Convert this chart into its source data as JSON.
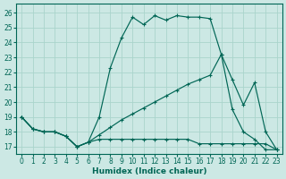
{
  "xlabel": "Humidex (Indice chaleur)",
  "bg_color": "#cce8e4",
  "grid_color": "#aad4cc",
  "line_color": "#006655",
  "xlim": [
    -0.5,
    23.5
  ],
  "ylim": [
    16.5,
    26.6
  ],
  "xticks": [
    0,
    1,
    2,
    3,
    4,
    5,
    6,
    7,
    8,
    9,
    10,
    11,
    12,
    13,
    14,
    15,
    16,
    17,
    18,
    19,
    20,
    21,
    22,
    23
  ],
  "yticks": [
    17,
    18,
    19,
    20,
    21,
    22,
    23,
    24,
    25,
    26
  ],
  "line1_x": [
    0,
    1,
    2,
    3,
    4,
    5,
    6,
    7,
    8,
    9,
    10,
    11,
    12,
    13,
    14,
    15,
    16,
    17,
    18,
    19,
    20,
    21,
    22,
    23
  ],
  "line1_y": [
    19,
    18.2,
    18,
    18,
    17.7,
    17.0,
    17.3,
    19.0,
    22.3,
    24.3,
    25.7,
    25.2,
    25.8,
    25.5,
    25.8,
    25.7,
    25.7,
    25.6,
    23.2,
    19.5,
    18.0,
    17.5,
    16.8,
    16.8
  ],
  "line2_x": [
    0,
    1,
    2,
    3,
    4,
    5,
    6,
    7,
    8,
    9,
    10,
    11,
    12,
    13,
    14,
    15,
    16,
    17,
    18,
    19,
    20,
    21,
    22,
    23
  ],
  "line2_y": [
    19,
    18.2,
    18,
    18,
    17.7,
    17.0,
    17.3,
    17.8,
    18.3,
    18.8,
    19.2,
    19.6,
    20.0,
    20.4,
    20.8,
    21.2,
    21.5,
    21.8,
    23.2,
    21.5,
    19.8,
    21.3,
    18.0,
    16.8
  ],
  "line3_x": [
    0,
    1,
    2,
    3,
    4,
    5,
    6,
    7,
    8,
    9,
    10,
    11,
    12,
    13,
    14,
    15,
    16,
    17,
    18,
    19,
    20,
    21,
    22,
    23
  ],
  "line3_y": [
    19,
    18.2,
    18,
    18,
    17.7,
    17.0,
    17.3,
    17.5,
    17.5,
    17.5,
    17.5,
    17.5,
    17.5,
    17.5,
    17.5,
    17.5,
    17.2,
    17.2,
    17.2,
    17.2,
    17.2,
    17.2,
    17.2,
    16.8
  ]
}
